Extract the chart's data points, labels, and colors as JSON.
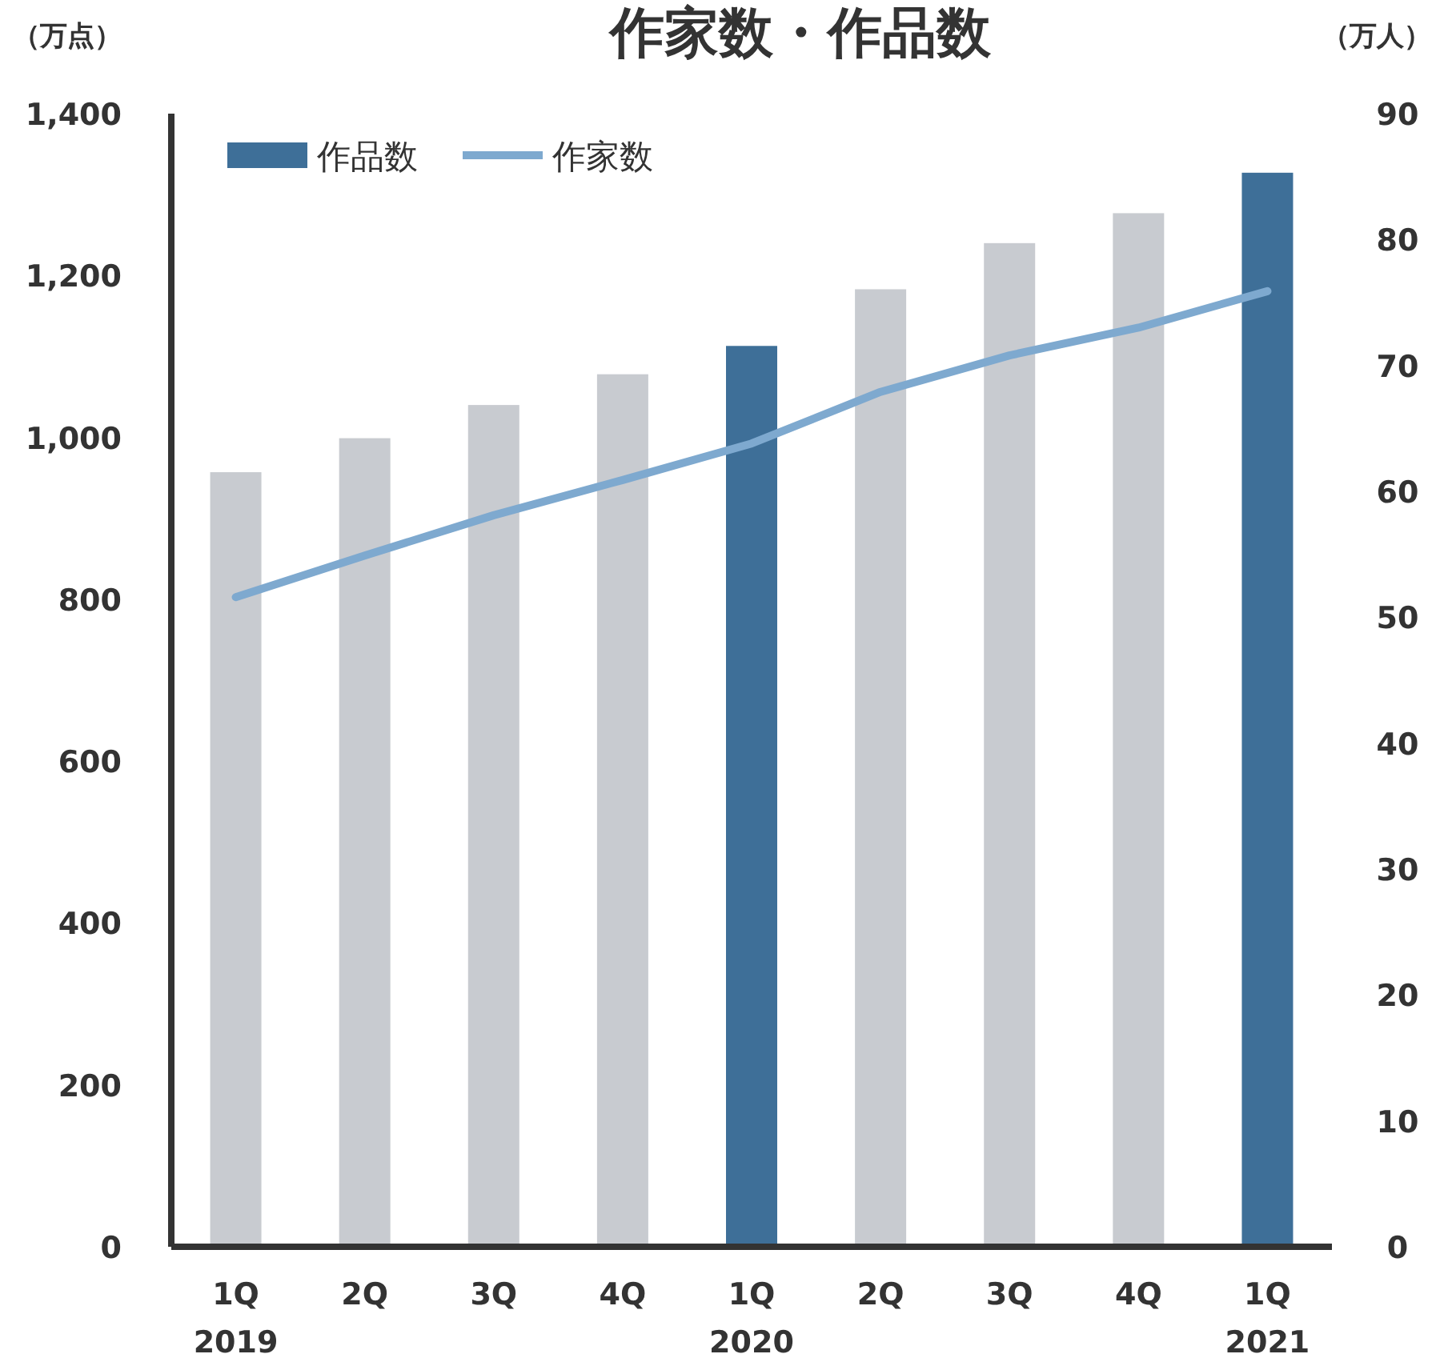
{
  "chart_data": {
    "type": "bar",
    "title": "作家数・作品数",
    "ylabel": "（万点）",
    "y2label": "（万人）",
    "categories": [
      "1Q\n2019",
      "2Q",
      "3Q",
      "4Q",
      "1Q\n2020",
      "2Q",
      "3Q",
      "4Q",
      "1Q\n2021"
    ],
    "series": [
      {
        "name": "作品数",
        "color": "#3e6f98",
        "colors": [
          "#c8cbd0",
          "#c8cbd0",
          "#c8cbd0",
          "#c8cbd0",
          "#3e6f98",
          "#c8cbd0",
          "#c8cbd0",
          "#c8cbd0",
          "#3e6f98"
        ],
        "values": [
          957,
          999,
          1040,
          1078,
          1113,
          1183,
          1240,
          1277,
          1327
        ]
      },
      {
        "name": "作家数",
        "type": "line",
        "axis": "y2",
        "color": "#7ea9cf",
        "values": [
          51.6,
          54.9,
          58.1,
          60.9,
          63.8,
          67.9,
          70.8,
          73.0,
          75.9
        ]
      }
    ],
    "ylim": [
      0,
      1400
    ],
    "yticks": [
      0,
      200,
      400,
      600,
      800,
      {
        "value": 1000,
        "label": "1,000"
      },
      {
        "value": 1200,
        "label": "1,200"
      },
      {
        "value": 1400,
        "label": "1,400"
      }
    ],
    "y2lim": [
      0,
      90
    ],
    "y2ticks": [
      0,
      10,
      20,
      30,
      40,
      50,
      60,
      70,
      80,
      90
    ],
    "legend": "top left"
  }
}
